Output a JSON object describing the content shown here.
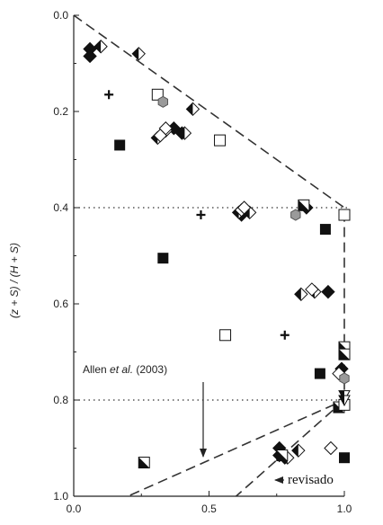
{
  "chart_data": {
    "type": "scatter",
    "title": "",
    "xlabel": "",
    "ylabel": "(z + S) / (H + S)",
    "xlim": [
      0,
      1.0
    ],
    "ylim": [
      1.0,
      0.0
    ],
    "y_inverted": true,
    "x_ticks": [
      "0.0",
      "0.5",
      "1.0"
    ],
    "y_ticks": [
      "0.0",
      "0.2",
      "0.4",
      "0.6",
      "0.8",
      "1.0"
    ],
    "grid": false,
    "guide_lines": {
      "dotted_y": [
        0.4,
        0.8
      ],
      "dashed_envelope": [
        [
          0.0,
          0.0
        ],
        [
          1.0,
          0.4
        ],
        [
          1.0,
          0.8
        ],
        [
          0.2,
          1.0
        ]
      ],
      "dashed_revised": [
        [
          1.0,
          0.8
        ],
        [
          0.6,
          1.0
        ]
      ]
    },
    "annotations": [
      {
        "text_parts": [
          "Allen ",
          "et al.",
          " (2003)"
        ],
        "arrow_to": [
          0.47,
          0.925
        ]
      },
      {
        "text": "revisado",
        "arrow_to": [
          0.72,
          0.935
        ]
      }
    ],
    "series": [
      {
        "marker": "filled-diamond",
        "color": "#111111",
        "points": [
          [
            0.06,
            0.07
          ],
          [
            0.06,
            0.085
          ],
          [
            0.37,
            0.235
          ],
          [
            0.4,
            0.245
          ],
          [
            0.62,
            0.415
          ],
          [
            0.86,
            0.4
          ],
          [
            0.94,
            0.575
          ],
          [
            0.76,
            0.9
          ],
          [
            0.76,
            0.915
          ],
          [
            0.78,
            0.92
          ],
          [
            0.99,
            0.735
          ]
        ]
      },
      {
        "marker": "half-filled-diamond",
        "color": "#111111",
        "points": [
          [
            0.1,
            0.065
          ],
          [
            0.24,
            0.08
          ],
          [
            0.31,
            0.255
          ],
          [
            0.34,
            0.24
          ],
          [
            0.41,
            0.245
          ],
          [
            0.44,
            0.195
          ],
          [
            0.61,
            0.41
          ],
          [
            0.65,
            0.41
          ],
          [
            0.84,
            0.58
          ],
          [
            0.89,
            0.575
          ],
          [
            0.83,
            0.905
          ],
          [
            0.79,
            0.92
          ]
        ]
      },
      {
        "marker": "open-diamond",
        "color": "#111111",
        "points": [
          [
            0.32,
            0.25
          ],
          [
            0.34,
            0.235
          ],
          [
            0.62,
            0.405
          ],
          [
            0.63,
            0.4
          ],
          [
            0.88,
            0.57
          ],
          [
            0.95,
            0.9
          ],
          [
            0.98,
            0.745
          ]
        ]
      },
      {
        "marker": "filled-square",
        "color": "#111111",
        "points": [
          [
            0.17,
            0.27
          ],
          [
            0.33,
            0.505
          ],
          [
            0.93,
            0.445
          ],
          [
            0.91,
            0.745
          ],
          [
            1.0,
            0.92
          ]
        ]
      },
      {
        "marker": "half-filled-square",
        "color": "#111111",
        "points": [
          [
            0.26,
            0.93
          ],
          [
            0.85,
            0.395
          ],
          [
            0.98,
            0.815
          ],
          [
            1.0,
            0.69
          ],
          [
            1.0,
            0.705
          ],
          [
            0.77,
            0.915
          ]
        ]
      },
      {
        "marker": "open-square",
        "color": "#111111",
        "points": [
          [
            0.31,
            0.165
          ],
          [
            0.54,
            0.26
          ],
          [
            0.56,
            0.665
          ],
          [
            1.0,
            0.415
          ],
          [
            1.0,
            0.81
          ]
        ]
      },
      {
        "marker": "plus",
        "color": "#111111",
        "points": [
          [
            0.13,
            0.165
          ],
          [
            0.47,
            0.415
          ],
          [
            0.78,
            0.665
          ]
        ]
      },
      {
        "marker": "gray-hexagon",
        "color": "#9a9a9a",
        "points": [
          [
            0.33,
            0.18
          ],
          [
            0.82,
            0.415
          ],
          [
            1.0,
            0.755
          ]
        ]
      },
      {
        "marker": "half-filled-triangle",
        "color": "#111111",
        "points": [
          [
            1.0,
            0.79
          ],
          [
            1.0,
            0.8
          ]
        ]
      }
    ]
  }
}
